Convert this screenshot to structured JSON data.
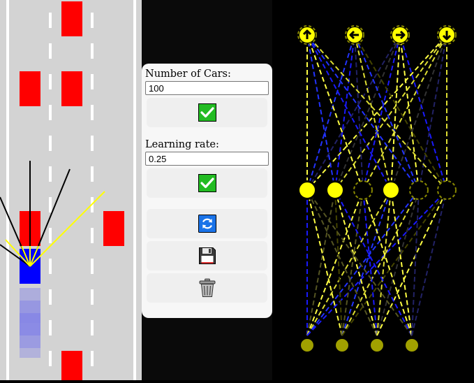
{
  "controls": {
    "cars_label": "Number of Cars:",
    "cars_value": "100",
    "lr_label": "Learning rate:",
    "lr_value": "0.25"
  },
  "icons": {
    "confirm_cars": "checkmark-icon",
    "confirm_lr": "checkmark-icon",
    "reload": "refresh-icon",
    "save": "floppy-disk-icon",
    "discard": "trash-can-icon"
  },
  "colors": {
    "road": "#d3d3d3",
    "traffic_car": "#ff0000",
    "best_car": "#0000ff",
    "sensor_ray": "#ffff00",
    "active_node": "#ffff00",
    "checkmark": "#22bb22",
    "reload": "#1a73e8"
  },
  "network": {
    "outputs": [
      "up-arrow-icon",
      "left-arrow-icon",
      "right-arrow-icon",
      "down-arrow-icon"
    ],
    "output_active": [
      true,
      true,
      true,
      true
    ],
    "hidden_active": [
      true,
      true,
      false,
      true,
      false,
      false
    ],
    "input_levels": [
      0.8,
      0.8,
      0.8,
      0.8
    ]
  }
}
